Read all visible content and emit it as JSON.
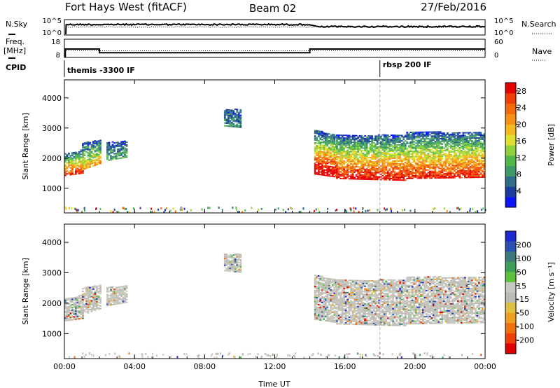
{
  "header": {
    "station": "Fort Hays West (fitACF)",
    "beam": "Beam 02",
    "date": "27/Feb/2016"
  },
  "summary": {
    "nsky_label": "N.Sky",
    "nsearch_label": "N.Search",
    "freq_label_line1": "Freq.",
    "freq_label_line2": "[MHz]",
    "nave_label": "Nave",
    "cpid_label": "CPID",
    "nsky_ticks": [
      "10^5",
      "10^0"
    ],
    "nsearch_ticks": [
      "10^5",
      "10^0"
    ],
    "freq_ticks": [
      "18",
      "8"
    ],
    "nave_ticks": [
      "60",
      "0"
    ],
    "cpid_segments": [
      {
        "start_hour": 0,
        "label": "themis -3300 IF"
      },
      {
        "start_hour": 18.0,
        "label": "rbsp 200 IF"
      }
    ],
    "freq_steps": [
      {
        "from": 0.05,
        "to": 2.0,
        "value": 12.6
      },
      {
        "from": 2.0,
        "to": 14.0,
        "value": 10.6
      },
      {
        "from": 14.0,
        "to": 24.0,
        "value": 12.6
      }
    ],
    "nave_level": 22
  },
  "colors": {
    "power_scale": [
      "#0a14ff",
      "#1b3c9e",
      "#2f6e8a",
      "#3f9a6a",
      "#52b84a",
      "#8fd23c",
      "#e0e030",
      "#f5b81f",
      "#f59014",
      "#f56a0a",
      "#f03c06",
      "#e60000"
    ],
    "velocity_scale": [
      "#1e2ad2",
      "#2c4fb3",
      "#3a7a7a",
      "#3c9f5a",
      "#5cc23c",
      "#c8c8c0",
      "#bcbcb4",
      "#e0c040",
      "#f0a020",
      "#f07010",
      "#f04008",
      "#e00000"
    ]
  },
  "chart_data": [
    {
      "type": "heatmap",
      "name": "power",
      "xlabel": "",
      "ylabel": "Slant Range [km]",
      "xlim": [
        0,
        24
      ],
      "ylim": [
        180,
        4600
      ],
      "y_ticks": [
        1000,
        2000,
        3000,
        4000
      ],
      "colorbar": {
        "label": "Power [dB]",
        "range": [
          0,
          30
        ],
        "tick_values": [
          4,
          8,
          12,
          16,
          20,
          24,
          28
        ]
      },
      "echo_regions": [
        {
          "t_start": 0.0,
          "t_end": 1.0,
          "r_low": 1400,
          "r_high": 2150,
          "slope_low": 80,
          "slope_high": 100,
          "level": 0.75
        },
        {
          "t_start": 1.0,
          "t_end": 2.1,
          "r_low": 1600,
          "r_high": 2500,
          "slope_low": 200,
          "slope_high": 80,
          "level": 0.5
        },
        {
          "t_start": 2.4,
          "t_end": 3.6,
          "r_low": 1900,
          "r_high": 2500,
          "slope_low": 100,
          "slope_high": 60,
          "level": 0.2
        },
        {
          "t_start": 9.1,
          "t_end": 10.0,
          "r_low": 3050,
          "r_high": 3600,
          "slope_low": -60,
          "slope_high": 0,
          "level": 0.15
        },
        {
          "t_start": 14.25,
          "t_end": 15.5,
          "r_low": 1450,
          "r_high": 2900,
          "slope_low": -80,
          "slope_high": -100,
          "level": 0.9
        },
        {
          "t_start": 15.5,
          "t_end": 19.5,
          "r_low": 1300,
          "r_high": 2750,
          "slope_low": -15,
          "slope_high": 0,
          "level": 0.8
        },
        {
          "t_start": 19.5,
          "t_end": 24.0,
          "r_low": 1300,
          "r_high": 2850,
          "slope_low": 10,
          "slope_high": 0,
          "level": 0.75
        }
      ]
    },
    {
      "type": "heatmap",
      "name": "velocity",
      "xlabel": "Time UT",
      "ylabel": "Slant Range [km]",
      "xlim": [
        0,
        24
      ],
      "ylim": [
        180,
        4600
      ],
      "x_ticks": [
        "00:00",
        "04:00",
        "08:00",
        "12:00",
        "16:00",
        "20:00",
        "00:00"
      ],
      "y_ticks": [
        1000,
        2000,
        3000,
        4000
      ],
      "colorbar": {
        "label": "Velocity [m s⁻¹]",
        "tick_labels": [
          "200",
          "100",
          "50",
          "15",
          "-15",
          "-50",
          "-100",
          "-200"
        ]
      },
      "echo_regions": [
        {
          "t_start": 0.0,
          "t_end": 1.0,
          "r_low": 1400,
          "r_high": 2150,
          "slope_low": 80,
          "slope_high": 100,
          "level": 0.5
        },
        {
          "t_start": 1.0,
          "t_end": 2.1,
          "r_low": 1600,
          "r_high": 2500,
          "slope_low": 200,
          "slope_high": 80,
          "level": 0.5
        },
        {
          "t_start": 2.4,
          "t_end": 3.6,
          "r_low": 1900,
          "r_high": 2500,
          "slope_low": 100,
          "slope_high": 60,
          "level": 0.5
        },
        {
          "t_start": 9.1,
          "t_end": 10.0,
          "r_low": 3050,
          "r_high": 3600,
          "slope_low": -60,
          "slope_high": 0,
          "level": 0.5
        },
        {
          "t_start": 14.25,
          "t_end": 15.5,
          "r_low": 1450,
          "r_high": 2900,
          "slope_low": -80,
          "slope_high": -100,
          "level": 0.5
        },
        {
          "t_start": 15.5,
          "t_end": 19.5,
          "r_low": 1300,
          "r_high": 2750,
          "slope_low": -15,
          "slope_high": 0,
          "level": 0.5
        },
        {
          "t_start": 19.5,
          "t_end": 24.0,
          "r_low": 1300,
          "r_high": 2850,
          "slope_low": 10,
          "slope_high": 0,
          "level": 0.5
        }
      ]
    }
  ]
}
